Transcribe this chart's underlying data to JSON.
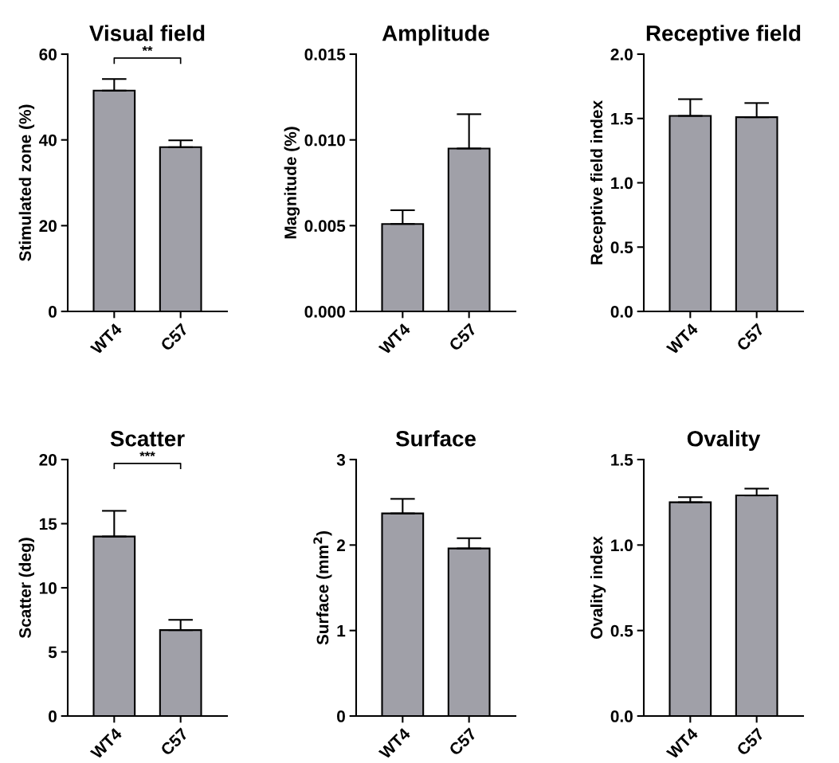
{
  "chart_data": [
    {
      "type": "bar",
      "title": "Visual field",
      "ylabel": "Stimulated zone (%)",
      "categories": [
        "WT4",
        "C57"
      ],
      "values": [
        51.5,
        38.3
      ],
      "errors": [
        [
          51.5,
          54.2
        ],
        [
          38.3,
          39.9
        ]
      ],
      "color": "#a0a0a8",
      "ylim": [
        0,
        60
      ],
      "yticks": [
        0,
        20,
        40,
        60
      ],
      "annotations": [
        "**"
      ],
      "grid": false,
      "legend": false
    },
    {
      "type": "bar",
      "title": "Amplitude",
      "ylabel": "Magnitude (%)",
      "categories": [
        "WT4",
        "C57"
      ],
      "values": [
        0.0051,
        0.0095
      ],
      "errors": [
        [
          0.0051,
          0.0059
        ],
        [
          0.0095,
          0.0115
        ]
      ],
      "color": "#a0a0a8",
      "ylim": [
        0,
        0.015
      ],
      "yticks": [
        {
          "value": 0,
          "label": "0.000"
        },
        {
          "value": 0.005,
          "label": "0.005"
        },
        {
          "value": 0.01,
          "label": "0.010"
        },
        {
          "value": 0.015,
          "label": "0.015"
        }
      ],
      "grid": false,
      "legend": false
    },
    {
      "type": "bar",
      "title": "Receptive field",
      "ylabel": "Receptive field index",
      "categories": [
        "WT4",
        "C57"
      ],
      "values": [
        1.52,
        1.51
      ],
      "errors": [
        [
          1.52,
          1.65
        ],
        [
          1.51,
          1.62
        ]
      ],
      "color": "#a0a0a8",
      "ylim": [
        0,
        2.0
      ],
      "yticks": [
        {
          "value": 0,
          "label": "0.0"
        },
        {
          "value": 0.5,
          "label": "0.5"
        },
        {
          "value": 1.0,
          "label": "1.0"
        },
        {
          "value": 1.5,
          "label": "1.5"
        },
        {
          "value": 2.0,
          "label": "2.0"
        }
      ],
      "grid": false,
      "legend": false
    },
    {
      "type": "bar",
      "title": "Scatter",
      "ylabel": "Scatter (deg)",
      "categories": [
        "WT4",
        "C57"
      ],
      "values": [
        14.0,
        6.7
      ],
      "errors": [
        [
          14.0,
          16.0
        ],
        [
          6.7,
          7.5
        ]
      ],
      "color": "#a0a0a8",
      "ylim": [
        0,
        20
      ],
      "yticks": [
        0,
        5,
        10,
        15,
        20
      ],
      "annotations": [
        "***"
      ],
      "grid": false,
      "legend": false
    },
    {
      "type": "bar",
      "title": "Surface",
      "ylabel": "Surface (mm$^{2}$)",
      "categories": [
        "WT4",
        "C57"
      ],
      "values": [
        2.37,
        1.96
      ],
      "errors": [
        [
          2.37,
          2.54
        ],
        [
          1.96,
          2.08
        ]
      ],
      "color": "#a0a0a8",
      "ylim": [
        0,
        3
      ],
      "yticks": [
        0,
        1,
        2,
        3
      ],
      "grid": false,
      "legend": false
    },
    {
      "type": "bar",
      "title": "Ovality",
      "ylabel": "Ovality index",
      "categories": [
        "WT4",
        "C57"
      ],
      "values": [
        1.25,
        1.29
      ],
      "errors": [
        [
          1.25,
          1.28
        ],
        [
          1.29,
          1.33
        ]
      ],
      "color": "#a0a0a8",
      "ylim": [
        0,
        1.5
      ],
      "yticks": [
        {
          "value": 0,
          "label": "0.0"
        },
        {
          "value": 0.5,
          "label": "0.5"
        },
        {
          "value": 1.0,
          "label": "1.0"
        },
        {
          "value": 1.5,
          "label": "1.5"
        }
      ],
      "grid": false,
      "legend": false
    }
  ]
}
